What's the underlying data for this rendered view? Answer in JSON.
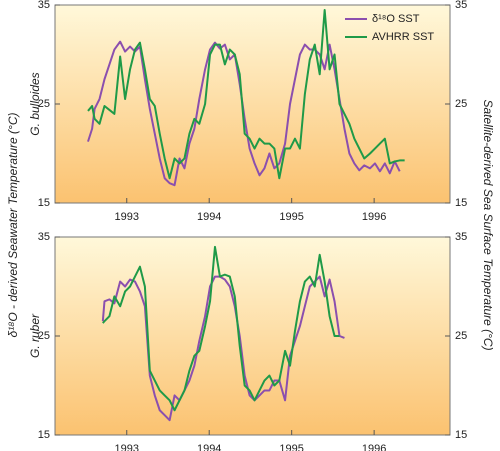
{
  "y_label_left": "δ¹⁸O - derived Seawater Temperature (°C)",
  "y_label_right": "Satellite-derived Sea Surface Temperature (°C)",
  "chart_data": [
    {
      "type": "line",
      "panel_label": "G. bulloides",
      "legend": "upper right",
      "xlim": [
        1992.13,
        1996.92
      ],
      "xticks": [
        1993,
        1994,
        1995,
        1996
      ],
      "ylim": [
        15,
        35
      ],
      "yticks": [
        15,
        25,
        35
      ],
      "x": [
        1992.53,
        1992.58,
        1992.61,
        1992.67,
        1992.73,
        1992.79,
        1992.85,
        1992.92,
        1992.98,
        1993.04,
        1993.1,
        1993.16,
        1993.22,
        1993.28,
        1993.34,
        1993.4,
        1993.46,
        1993.52,
        1993.58,
        1993.64,
        1993.7,
        1993.76,
        1993.82,
        1993.88,
        1993.95,
        1994.01,
        1994.07,
        1994.13,
        1994.19,
        1994.25,
        1994.31,
        1994.37,
        1994.43,
        1994.49,
        1994.55,
        1994.61,
        1994.67,
        1994.73,
        1994.79,
        1994.85,
        1994.92,
        1994.98,
        1995.04,
        1995.1,
        1995.16,
        1995.22,
        1995.28,
        1995.34,
        1995.4,
        1995.46,
        1995.52,
        1995.58,
        1995.64,
        1995.7,
        1995.76,
        1995.82,
        1995.88,
        1995.95,
        1996.01,
        1996.07,
        1996.13,
        1996.19,
        1996.25,
        1996.31,
        1996.37
      ],
      "series": [
        {
          "name": "δ¹⁸O SST",
          "color": "#8b4fae",
          "values": [
            21.2,
            22.5,
            24.5,
            25.5,
            27.5,
            29,
            30.5,
            31.3,
            30.3,
            30.8,
            30.3,
            30.8,
            27.5,
            24.5,
            22,
            19.5,
            17.5,
            17,
            16.8,
            19.5,
            18.5,
            21,
            22.5,
            25.5,
            28.5,
            30.5,
            31.2,
            30.6,
            31,
            29.5,
            30,
            27,
            23.5,
            20.5,
            19,
            17.8,
            18.5,
            20,
            18.5,
            19,
            21,
            25,
            27.5,
            30,
            31,
            30.5,
            30.5,
            30,
            28.5,
            31,
            28.5,
            25.5,
            22.5,
            20,
            19,
            18.3,
            18.8,
            18.5,
            19,
            18.2,
            19,
            18,
            19.2,
            18.2,
            null
          ]
        },
        {
          "name": "AVHRR SST",
          "color": "#1f9a48",
          "values": [
            24.3,
            24.8,
            23.5,
            23,
            24.8,
            24.4,
            24,
            29.8,
            25.5,
            28.5,
            30.5,
            31.2,
            28.5,
            25.5,
            24.8,
            22,
            19.5,
            17.5,
            19.5,
            19,
            19.5,
            22,
            23.5,
            23,
            25,
            30,
            31,
            31,
            29,
            30.5,
            30,
            28,
            22,
            21.5,
            20.5,
            21.5,
            21,
            21,
            20.5,
            17.5,
            20.5,
            20.5,
            21.5,
            20.5,
            26,
            29.5,
            31,
            28,
            34.5,
            28.5,
            30,
            25,
            24,
            23,
            21.5,
            20.5,
            19.5,
            20,
            20.5,
            21,
            21.5,
            19,
            19.2,
            19.3,
            19.3
          ]
        }
      ]
    },
    {
      "type": "line",
      "panel_label": "G. ruber",
      "xlim": [
        1992.13,
        1996.92
      ],
      "xticks": [
        1993,
        1994,
        1995,
        1996
      ],
      "ylim": [
        15,
        35
      ],
      "yticks": [
        15,
        25,
        35
      ],
      "x": [
        1992.71,
        1992.73,
        1992.79,
        1992.85,
        1992.92,
        1992.98,
        1993.04,
        1993.1,
        1993.16,
        1993.22,
        1993.28,
        1993.34,
        1993.4,
        1993.46,
        1993.52,
        1993.58,
        1993.64,
        1993.7,
        1993.76,
        1993.82,
        1993.88,
        1993.95,
        1994.01,
        1994.07,
        1994.13,
        1994.19,
        1994.25,
        1994.31,
        1994.37,
        1994.43,
        1994.49,
        1994.55,
        1994.61,
        1994.67,
        1994.73,
        1994.79,
        1994.85,
        1994.92,
        1994.98,
        1995.04,
        1995.1,
        1995.16,
        1995.22,
        1995.28,
        1995.34,
        1995.4,
        1995.46,
        1995.52,
        1995.58,
        1995.64
      ],
      "series": [
        {
          "color": "#8b4fae",
          "values": [
            26.5,
            28.5,
            28.7,
            28.3,
            30.5,
            30,
            30.7,
            30.5,
            29.5,
            28,
            21,
            19,
            17.5,
            17,
            16.5,
            19,
            18.5,
            19.5,
            20.5,
            22,
            24.5,
            27,
            30,
            31,
            31,
            30.7,
            30,
            28,
            25,
            21,
            19,
            18.5,
            19,
            19.5,
            19.5,
            20.5,
            20.5,
            18.5,
            23,
            24.5,
            26,
            28,
            30,
            30.5,
            31,
            29,
            30.7,
            28.5,
            25,
            24.8
          ]
        },
        {
          "color": "#1f9a48",
          "values": [
            26.3,
            26.5,
            27,
            29,
            28,
            29.5,
            30,
            31,
            32,
            30,
            21.5,
            20.5,
            19.5,
            19,
            18.5,
            17.5,
            18.5,
            19.5,
            21.5,
            23,
            23.5,
            26,
            28.5,
            34,
            31,
            31.2,
            31,
            29,
            24,
            20,
            19.5,
            18.5,
            19.5,
            20.5,
            21,
            20,
            20.5,
            23.5,
            22,
            25.5,
            28.5,
            30.5,
            31,
            30,
            33.2,
            30.5,
            27,
            25,
            25,
            null
          ]
        }
      ]
    }
  ]
}
